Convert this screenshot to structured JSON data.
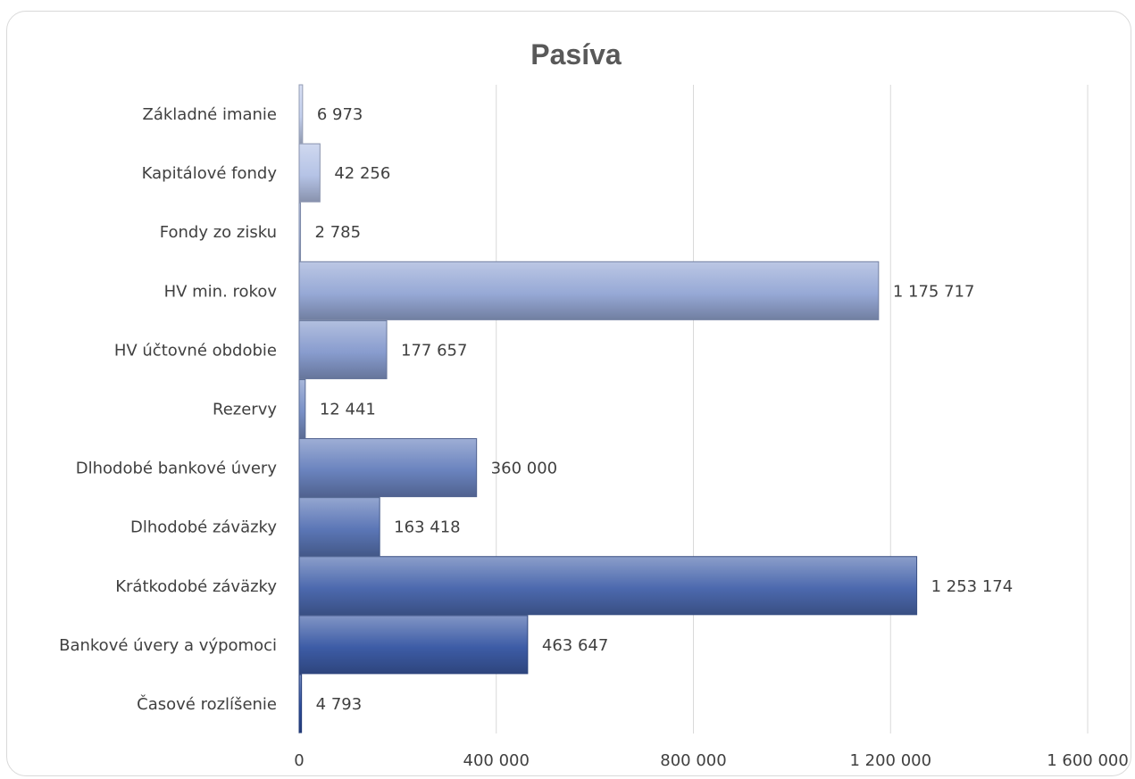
{
  "chart_data": {
    "type": "bar",
    "orientation": "horizontal",
    "title": "Pasíva",
    "xlabel": "",
    "ylabel": "",
    "categories": [
      "Základné  imanie",
      "Kapitálové fondy",
      "Fondy zo zisku",
      "HV min. rokov",
      "HV účtovné obdobie",
      "Rezervy",
      "Dlhodobé bankové úvery",
      "Dlhodobé záväzky",
      "Krátkodobé záväzky",
      "Bankové úvery a výpomoci",
      "Časové rozlíšenie"
    ],
    "values": [
      6973,
      42256,
      2785,
      1175717,
      177657,
      12441,
      360000,
      163418,
      1253174,
      463647,
      4793
    ],
    "value_labels": [
      "6 973",
      "42 256",
      "2 785",
      "1 175 717",
      "177 657",
      "12 441",
      "360 000",
      "163 418",
      "1 253 174",
      "463 647",
      "4 793"
    ],
    "xlim": [
      0,
      1600000
    ],
    "xticks": [
      0,
      400000,
      800000,
      1200000,
      1600000
    ],
    "xtick_labels": [
      "0",
      "400 000",
      "800 000",
      "1 200 000",
      "1 600 000"
    ],
    "grid": "vertical",
    "legend": "none",
    "colors": {
      "bar_top": "#c4d0ee",
      "bar_bottom": "#2e4f9e",
      "grid": "#d9d9d9",
      "text": "#404040",
      "title": "#595959"
    }
  }
}
